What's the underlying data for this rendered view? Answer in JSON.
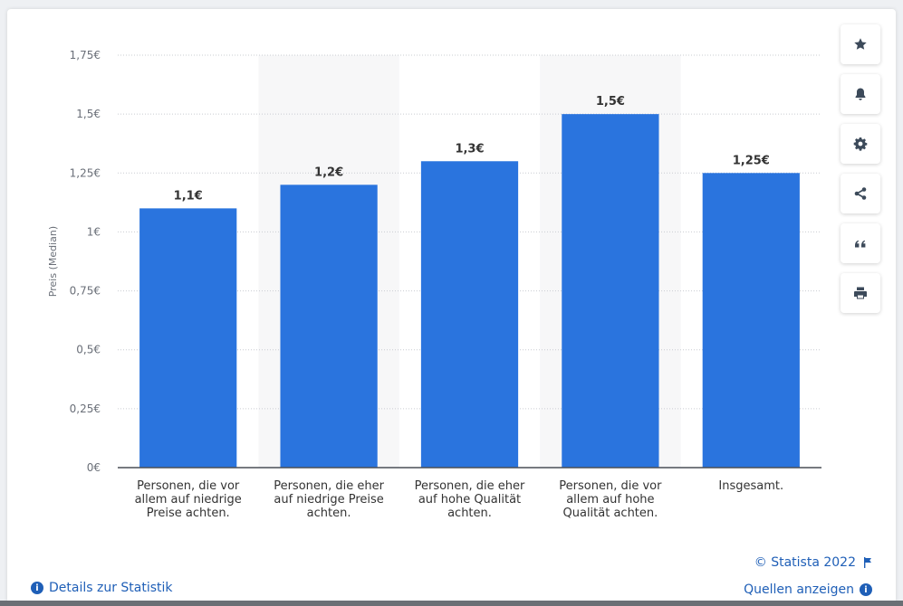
{
  "chart_data": {
    "type": "bar",
    "ylabel": "Preis (Median)",
    "ylim": [
      0,
      1.75
    ],
    "yticks": [
      0,
      0.25,
      0.5,
      0.75,
      1,
      1.25,
      1.5,
      1.75
    ],
    "ytick_labels": [
      "0€",
      "0,25€",
      "0,5€",
      "0,75€",
      "1€",
      "1,25€",
      "1,5€",
      "1,75€"
    ],
    "categories": [
      [
        "Personen, die vor",
        "allem auf niedrige",
        "Preise achten."
      ],
      [
        "Personen, die eher",
        "auf niedrige Preise",
        "achten."
      ],
      [
        "Personen, die eher",
        "auf hohe Qualität",
        "achten."
      ],
      [
        "Personen, die vor",
        "allem auf hohe",
        "Qualität achten."
      ],
      [
        "Insgesamt."
      ]
    ],
    "values": [
      1.1,
      1.2,
      1.3,
      1.5,
      1.25
    ],
    "value_labels": [
      "1,1€",
      "1,2€",
      "1,3€",
      "1,5€",
      "1,25€"
    ],
    "bar_color": "#2a74de",
    "grid": true
  },
  "toolbar": {
    "icons": [
      "star-icon",
      "bell-icon",
      "gear-icon",
      "share-icon",
      "quote-icon",
      "print-icon"
    ]
  },
  "footer": {
    "copyright": "© Statista 2022",
    "details_link": "Details zur Statistik",
    "sources_link": "Quellen anzeigen"
  }
}
